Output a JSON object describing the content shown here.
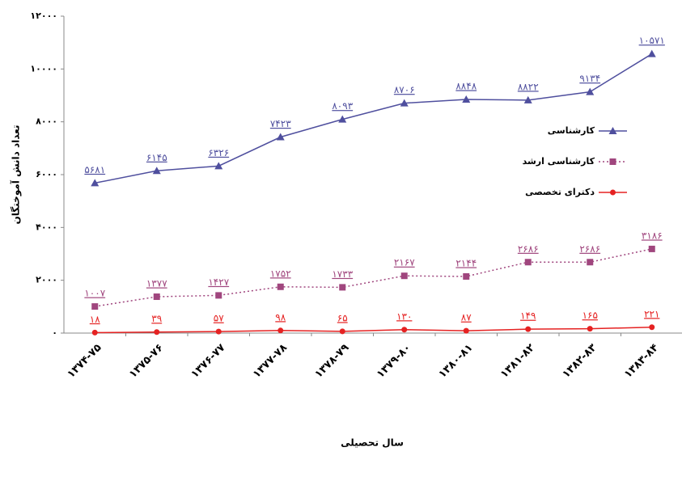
{
  "chart_data": {
    "type": "line",
    "x_label": "سال تحصیلی",
    "y_label": "تعداد دانش آموختگان",
    "categories": [
      "۱۳۷۴-۷۵",
      "۱۳۷۵-۷۶",
      "۱۳۷۶-۷۷",
      "۱۳۷۷-۷۸",
      "۱۳۷۸-۷۹",
      "۱۳۷۹-۸۰",
      "۱۳۸۰-۸۱",
      "۱۳۸۱-۸۲",
      "۱۳۸۲-۸۳",
      "۱۳۸۳-۸۴"
    ],
    "ylim": [
      0,
      12000
    ],
    "yticks": [
      {
        "value": 0,
        "label": "۰"
      },
      {
        "value": 2000,
        "label": "۲۰۰۰"
      },
      {
        "value": 4000,
        "label": "۴۰۰۰"
      },
      {
        "value": 6000,
        "label": "۶۰۰۰"
      },
      {
        "value": 8000,
        "label": "۸۰۰۰"
      },
      {
        "value": 10000,
        "label": "۱۰۰۰۰"
      },
      {
        "value": 12000,
        "label": "۱۲۰۰۰"
      }
    ],
    "grid": false,
    "legend": "right",
    "series": [
      {
        "name": "کارشناسی",
        "color": "#4f4f9e",
        "marker": "triangle",
        "dash": false,
        "values": [
          5681,
          6145,
          6326,
          7423,
          8093,
          8706,
          8848,
          8822,
          9134,
          10571
        ],
        "value_labels": [
          "۵۶۸۱",
          "۶۱۴۵",
          "۶۳۲۶",
          "۷۴۲۳",
          "۸۰۹۳",
          "۸۷۰۶",
          "۸۸۴۸",
          "۸۸۲۲",
          "۹۱۳۴",
          "۱۰۵۷۱"
        ]
      },
      {
        "name": "کارشناسی ارشد",
        "color": "#a0467e",
        "marker": "square",
        "dash": true,
        "values": [
          1007,
          1377,
          1427,
          1752,
          1733,
          2167,
          2144,
          2686,
          2686,
          3186
        ],
        "value_labels": [
          "۱۰۰۷",
          "۱۳۷۷",
          "۱۴۲۷",
          "۱۷۵۲",
          "۱۷۳۳",
          "۲۱۶۷",
          "۲۱۴۴",
          "۲۶۸۶",
          "۲۶۸۶",
          "۳۱۸۶"
        ]
      },
      {
        "name": "دکترای تخصصی",
        "color": "#e52222",
        "marker": "circle",
        "dash": false,
        "values": [
          18,
          39,
          57,
          98,
          65,
          130,
          87,
          149,
          165,
          221
        ],
        "value_labels": [
          "۱۸",
          "۳۹",
          "۵۷",
          "۹۸",
          "۶۵",
          "۱۳۰",
          "۸۷",
          "۱۴۹",
          "۱۶۵",
          "۲۲۱"
        ]
      }
    ]
  }
}
